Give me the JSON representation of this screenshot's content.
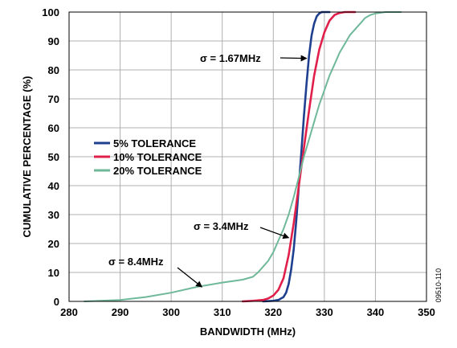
{
  "chart_data": {
    "type": "line",
    "title": "",
    "xlabel": "BANDWIDTH (MHz)",
    "ylabel": "CUMULATIVE PERCENTAGE  (%)",
    "xlim": [
      280,
      350
    ],
    "ylim": [
      0,
      100
    ],
    "xticks": [
      280,
      290,
      300,
      310,
      320,
      330,
      340,
      350
    ],
    "yticks": [
      0,
      10,
      20,
      30,
      40,
      50,
      60,
      70,
      80,
      90,
      100
    ],
    "grid": true,
    "legend_position": "center-left",
    "figure_id": "09510-110",
    "series": [
      {
        "name": "5% TOLERANCE",
        "color": "#1f3f8f",
        "x": [
          318,
          320,
          321,
          322,
          322.5,
          323,
          323.5,
          324,
          324.5,
          325,
          325.5,
          326,
          326.5,
          327,
          327.5,
          328,
          328.5,
          329,
          329.5,
          330,
          331
        ],
        "y": [
          0,
          0.2,
          0.5,
          1.5,
          3,
          6,
          11,
          18,
          28,
          40,
          52,
          64,
          75,
          85,
          92,
          96,
          98.5,
          99.5,
          100,
          100,
          100
        ]
      },
      {
        "name": "10% TOLERANCE",
        "color": "#e0204a",
        "x": [
          314,
          316,
          318,
          319,
          320,
          321,
          322,
          323,
          324,
          325,
          326,
          327,
          328,
          329,
          330,
          331,
          332,
          333,
          334,
          336
        ],
        "y": [
          0,
          0.2,
          0.5,
          1,
          2,
          4,
          8,
          16,
          27,
          40,
          53,
          66,
          78,
          87,
          93,
          97,
          99,
          99.7,
          100,
          100
        ]
      },
      {
        "name": "20% TOLERANCE",
        "color": "#6fb89a",
        "x": [
          283,
          286,
          290,
          295,
          300,
          305,
          310,
          314,
          316,
          317,
          318,
          319,
          320,
          321,
          322,
          323,
          324,
          325,
          326,
          327,
          328,
          329,
          330,
          331,
          332,
          333,
          334,
          335,
          336,
          337,
          338,
          339,
          340,
          342,
          345
        ],
        "y": [
          0,
          0.2,
          0.5,
          1.5,
          3,
          5,
          6.5,
          7.5,
          8.5,
          10,
          12,
          14,
          17,
          21,
          25,
          30,
          36,
          43,
          50,
          56,
          62,
          68,
          73,
          78,
          82,
          86,
          89,
          92,
          94,
          96,
          98,
          99,
          99.5,
          100,
          100
        ]
      }
    ],
    "annotations": [
      {
        "text": "σ = 1.67MHz",
        "target_series": "5% TOLERANCE",
        "target": [
          326.5,
          84
        ]
      },
      {
        "text": "σ = 3.4MHz",
        "target_series": "10% TOLERANCE",
        "target": [
          323,
          22
        ]
      },
      {
        "text": "σ = 8.4MHz",
        "target_series": "20% TOLERANCE",
        "target": [
          306,
          5
        ]
      }
    ]
  }
}
